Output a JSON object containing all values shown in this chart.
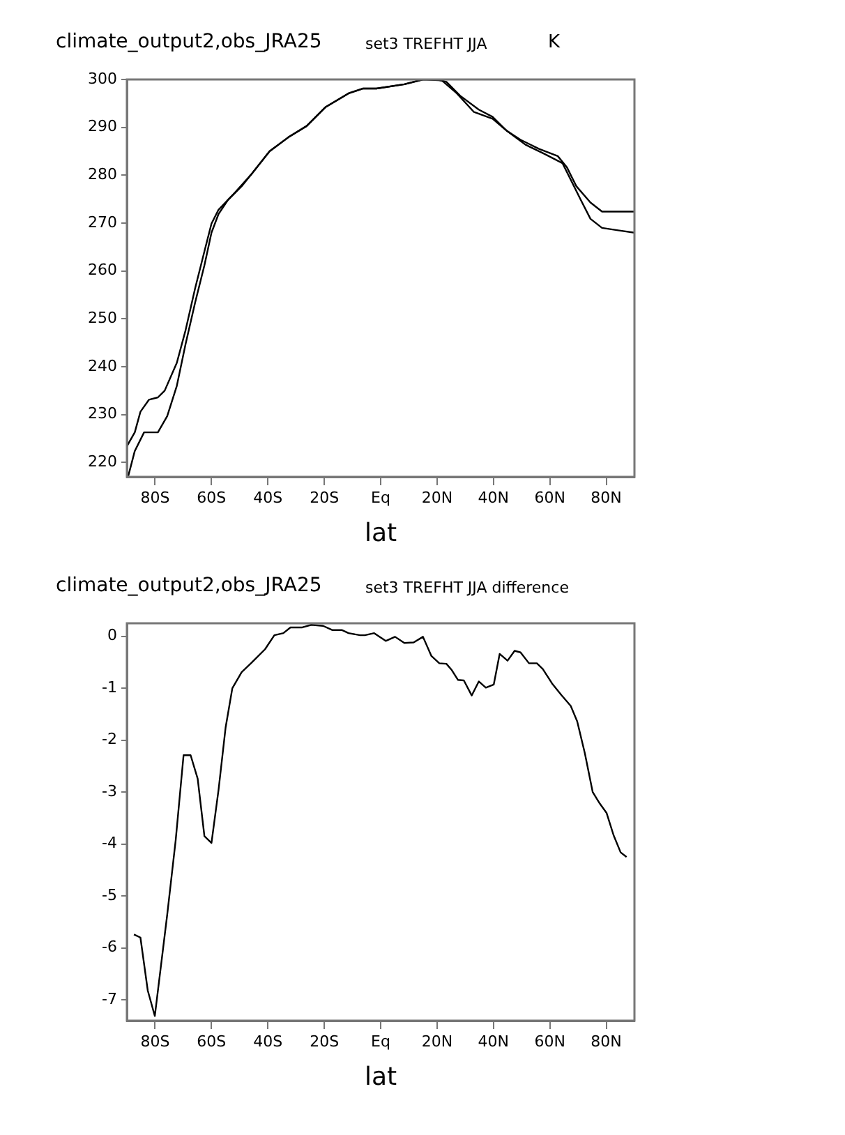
{
  "chart_data": [
    {
      "type": "line",
      "title": "climate_output2,obs_JRA25",
      "subtitle": "set3 TREFHT JJA",
      "ylabel": "K",
      "xlabel": "lat",
      "series": [
        {
          "color": "#000000",
          "x": [
            -90,
            -87.2,
            -85.2,
            -82.2,
            -79,
            -76.6,
            -72.3,
            -69.2,
            -65.8,
            -62.5,
            -60,
            -57.5,
            -52.6,
            -46,
            -39.4,
            -32.8,
            -26.2,
            -19.6,
            -11.4,
            -6.4,
            -1.5,
            8.4,
            15,
            20,
            23.3,
            28.2,
            34.8,
            39.7,
            44.7,
            49.6,
            56.2,
            62.8,
            66.1,
            69.4,
            74.4,
            78.5,
            84.2,
            90
          ],
          "values": [
            223.4,
            226.3,
            230.6,
            233.1,
            233.6,
            235,
            240.8,
            247.6,
            256.4,
            264.1,
            269.9,
            272.8,
            275.8,
            280.1,
            285,
            287.9,
            290.3,
            294.2,
            297.1,
            298.1,
            298.1,
            299,
            300,
            300,
            299.5,
            296.6,
            293.7,
            292.2,
            289.3,
            287.4,
            285.5,
            284,
            281.6,
            277.7,
            274.3,
            272.4,
            272.4,
            272.4
          ]
        },
        {
          "color": "#000000",
          "x": [
            -89.5,
            -87.2,
            -83.9,
            -81.4,
            -79,
            -75.7,
            -72.3,
            -69.2,
            -65.8,
            -62.5,
            -60,
            -57.5,
            -54.2,
            -49.3,
            -46,
            -39.4,
            -32.8,
            -26.2,
            -19.6,
            -11.4,
            -6.4,
            -1.5,
            8.4,
            15,
            21.7,
            27,
            33.1,
            39.7,
            44.7,
            51.3,
            57.9,
            64.5,
            71,
            74.4,
            78.5,
            84.2,
            90
          ],
          "values": [
            217.2,
            222.4,
            226.3,
            226.3,
            226.3,
            229.7,
            236,
            244.7,
            253.4,
            261.2,
            268,
            271.9,
            274.8,
            277.7,
            280.1,
            285,
            287.9,
            290.3,
            294.2,
            297.1,
            298.1,
            298.1,
            299,
            300,
            299.8,
            297.1,
            293.2,
            291.8,
            289.3,
            286.4,
            284.5,
            282.5,
            274.8,
            270.9,
            269,
            268.5,
            268
          ]
        }
      ],
      "xlim": [
        -90,
        90
      ],
      "ylim": [
        217,
        300
      ],
      "xticks": [
        {
          "value": -80,
          "label": "80S"
        },
        {
          "value": -60,
          "label": "60S"
        },
        {
          "value": -40,
          "label": "40S"
        },
        {
          "value": -20,
          "label": "20S"
        },
        {
          "value": 0,
          "label": "Eq"
        },
        {
          "value": 20,
          "label": "20N"
        },
        {
          "value": 40,
          "label": "40N"
        },
        {
          "value": 60,
          "label": "60N"
        },
        {
          "value": 80,
          "label": "80N"
        }
      ],
      "yticks": [
        220,
        230,
        240,
        250,
        260,
        270,
        280,
        290,
        300
      ],
      "grid": false,
      "legend": false,
      "marker": "none"
    },
    {
      "type": "line",
      "title": "climate_output2,obs_JRA25",
      "subtitle": "set3 TREFHT JJA difference",
      "xlabel": "lat",
      "series": [
        {
          "color": "#000000",
          "x": [
            -87.5,
            -85.2,
            -82.6,
            -80.1,
            -75.7,
            -72.7,
            -69.9,
            -67.4,
            -64.9,
            -62.5,
            -60,
            -57.5,
            -55,
            -52.6,
            -49.3,
            -46,
            -41,
            -37.7,
            -34.5,
            -32,
            -27.8,
            -24.6,
            -20.4,
            -17.2,
            -13.8,
            -11.4,
            -7.3,
            -5.6,
            -2.3,
            1.8,
            5.1,
            8.4,
            11.7,
            15,
            18,
            20.8,
            23.3,
            25.2,
            27.4,
            29.5,
            32.3,
            34.8,
            37.3,
            40.1,
            42.2,
            45,
            47.5,
            49.6,
            52.6,
            55.4,
            57.5,
            60.8,
            64.2,
            67.4,
            69.7,
            72.4,
            75.2,
            77.7,
            80.1,
            82.6,
            85.1,
            87.2
          ],
          "values": [
            -5.74,
            -5.8,
            -6.82,
            -7.31,
            -5.36,
            -3.93,
            -2.29,
            -2.29,
            -2.74,
            -3.85,
            -3.98,
            -2.96,
            -1.76,
            -1.0,
            -0.69,
            -0.52,
            -0.25,
            0.02,
            0.06,
            0.17,
            0.17,
            0.22,
            0.2,
            0.12,
            0.12,
            0.06,
            0.02,
            0.02,
            0.06,
            -0.09,
            -0.01,
            -0.13,
            -0.12,
            -0.01,
            -0.38,
            -0.52,
            -0.53,
            -0.65,
            -0.84,
            -0.85,
            -1.14,
            -0.87,
            -0.99,
            -0.93,
            -0.34,
            -0.47,
            -0.28,
            -0.31,
            -0.52,
            -0.52,
            -0.63,
            -0.91,
            -1.14,
            -1.34,
            -1.64,
            -2.25,
            -3.0,
            -3.22,
            -3.4,
            -3.83,
            -4.16,
            -4.25
          ]
        }
      ],
      "xlim": [
        -90,
        90
      ],
      "ylim": [
        -7.4,
        0.25
      ],
      "xticks": [
        {
          "value": -80,
          "label": "80S"
        },
        {
          "value": -60,
          "label": "60S"
        },
        {
          "value": -40,
          "label": "40S"
        },
        {
          "value": -20,
          "label": "20S"
        },
        {
          "value": 0,
          "label": "Eq"
        },
        {
          "value": 20,
          "label": "20N"
        },
        {
          "value": 40,
          "label": "40N"
        },
        {
          "value": 60,
          "label": "60N"
        },
        {
          "value": 80,
          "label": "80N"
        }
      ],
      "yticks": [
        0,
        -1,
        -2,
        -3,
        -4,
        -5,
        -6,
        -7
      ],
      "grid": false,
      "legend": false,
      "marker": "none"
    }
  ]
}
